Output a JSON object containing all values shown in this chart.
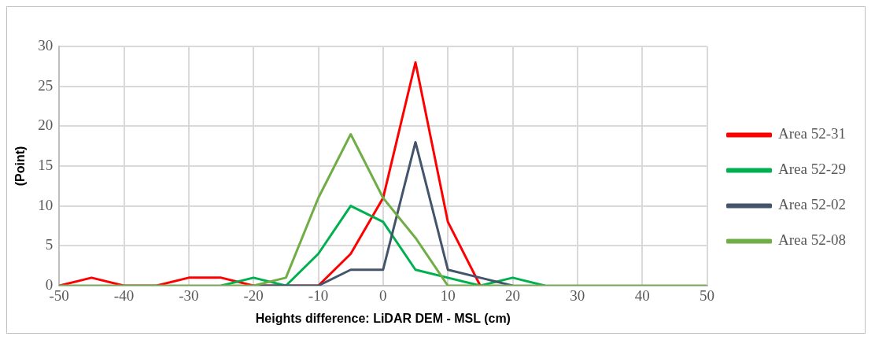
{
  "chart_data": {
    "type": "line",
    "xlabel": "Heights difference: LiDAR DEM - MSL (cm)",
    "ylabel": "(Point)",
    "x": [
      -50,
      -45,
      -40,
      -35,
      -30,
      -25,
      -20,
      -15,
      -10,
      -5,
      0,
      5,
      10,
      15,
      20,
      25,
      30,
      35,
      40,
      45,
      50
    ],
    "xlim": [
      -50,
      50
    ],
    "xticks": [
      -50,
      -40,
      -30,
      -20,
      -10,
      0,
      10,
      20,
      30,
      40,
      50
    ],
    "ylim": [
      0,
      30
    ],
    "yticks": [
      0,
      5,
      10,
      15,
      20,
      25,
      30
    ],
    "grid": true,
    "legend": "right",
    "marker": "none",
    "line_style": "solid",
    "series": [
      {
        "name": "Area 52-31",
        "color": "#ff0000",
        "values": [
          0,
          1,
          0,
          0,
          1,
          1,
          0,
          0,
          0,
          4,
          11,
          28,
          8,
          0,
          null,
          null,
          null,
          null,
          null,
          null,
          null
        ]
      },
      {
        "name": "Area 52-29",
        "color": "#00b050",
        "values": [
          null,
          null,
          null,
          null,
          null,
          0,
          1,
          0,
          4,
          10,
          8,
          2,
          1,
          0,
          1,
          0,
          null,
          null,
          null,
          null,
          null
        ]
      },
      {
        "name": "Area 52-02",
        "color": "#44546a",
        "values": [
          null,
          null,
          null,
          null,
          null,
          null,
          0,
          0,
          0,
          2,
          2,
          18,
          2,
          1,
          0,
          null,
          null,
          null,
          null,
          null,
          null
        ]
      },
      {
        "name": "Area 52-08",
        "color": "#70ad47",
        "values": [
          0,
          0,
          0,
          0,
          0,
          0,
          0,
          1,
          11,
          19,
          11,
          6,
          0,
          0,
          0,
          0,
          0,
          0,
          0,
          0,
          0
        ]
      }
    ]
  }
}
